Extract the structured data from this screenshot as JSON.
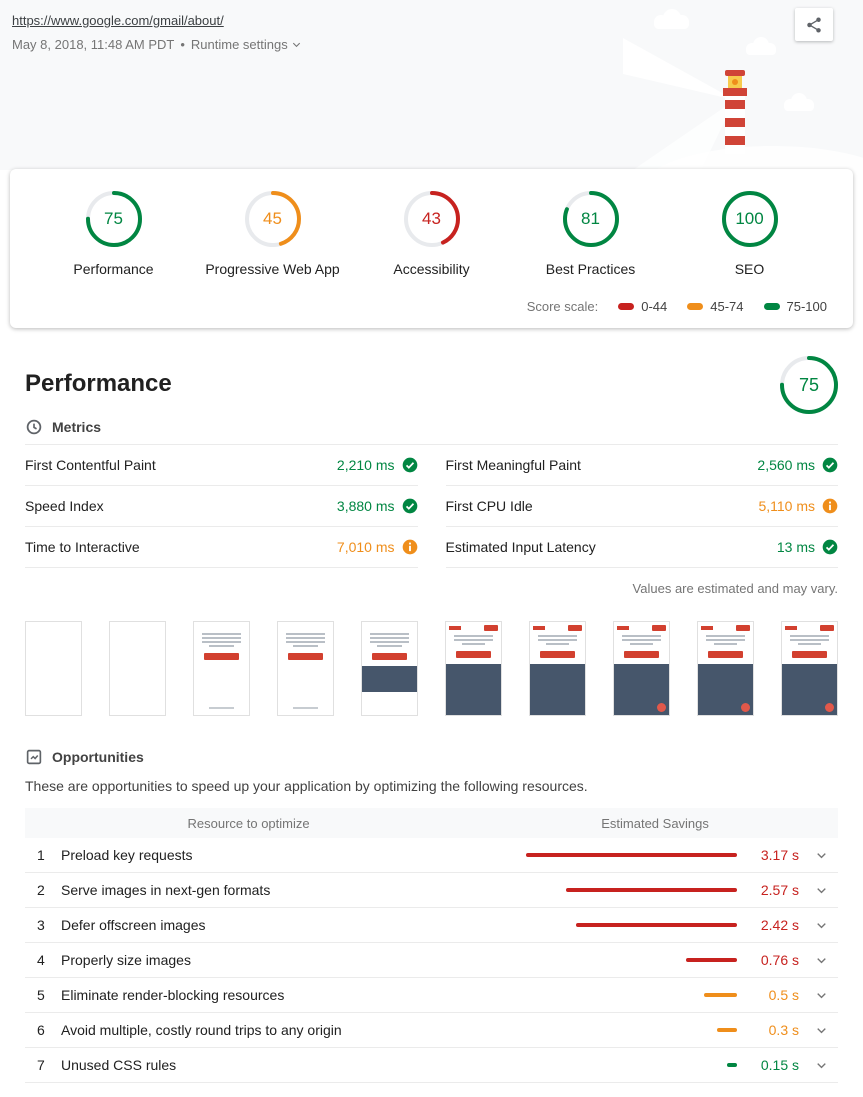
{
  "colors": {
    "pass": "#018642",
    "average": "#ef8e1b",
    "fail": "#c7221f"
  },
  "header": {
    "url": "https://www.google.com/gmail/about/",
    "meta": "May 8, 2018, 11:48 AM PDT",
    "separator": "•",
    "runtime_settings": "Runtime settings"
  },
  "scores": {
    "items": [
      {
        "label": "Performance",
        "score": 75,
        "status": "pass"
      },
      {
        "label": "Progressive Web App",
        "score": 45,
        "status": "average"
      },
      {
        "label": "Accessibility",
        "score": 43,
        "status": "fail"
      },
      {
        "label": "Best Practices",
        "score": 81,
        "status": "pass"
      },
      {
        "label": "SEO",
        "score": 100,
        "status": "pass"
      }
    ],
    "scale": {
      "label": "Score scale:",
      "ranges": [
        {
          "label": "0-44",
          "status": "fail"
        },
        {
          "label": "45-74",
          "status": "average"
        },
        {
          "label": "75-100",
          "status": "pass"
        }
      ]
    }
  },
  "performance": {
    "title": "Performance",
    "gauge": {
      "score": 75,
      "status": "pass"
    },
    "metrics": {
      "heading": "Metrics",
      "items": [
        {
          "label": "First Contentful Paint",
          "value": "2,210 ms",
          "status": "pass"
        },
        {
          "label": "First Meaningful Paint",
          "value": "2,560 ms",
          "status": "pass"
        },
        {
          "label": "Speed Index",
          "value": "3,880 ms",
          "status": "pass"
        },
        {
          "label": "First CPU Idle",
          "value": "5,110 ms",
          "status": "average"
        },
        {
          "label": "Time to Interactive",
          "value": "7,010 ms",
          "status": "average"
        },
        {
          "label": "Estimated Input Latency",
          "value": "13 ms",
          "status": "pass"
        }
      ],
      "disclaimer": "Values are estimated and may vary."
    },
    "filmstrip": {
      "frames": [
        "blank",
        "blank",
        "text",
        "text",
        "text-img",
        "page",
        "page",
        "page-fab",
        "page-fab",
        "page-fab"
      ]
    }
  },
  "opportunities": {
    "heading": "Opportunities",
    "description": "These are opportunities to speed up your application by optimizing the following resources.",
    "table": {
      "col1": "Resource to optimize",
      "col2": "Estimated Savings",
      "rows": [
        {
          "num": "1",
          "label": "Preload key requests",
          "seconds": 3.17,
          "savings": "3.17 s",
          "status": "fail"
        },
        {
          "num": "2",
          "label": "Serve images in next-gen formats",
          "seconds": 2.57,
          "savings": "2.57 s",
          "status": "fail"
        },
        {
          "num": "3",
          "label": "Defer offscreen images",
          "seconds": 2.42,
          "savings": "2.42 s",
          "status": "fail"
        },
        {
          "num": "4",
          "label": "Properly size images",
          "seconds": 0.76,
          "savings": "0.76 s",
          "status": "fail"
        },
        {
          "num": "5",
          "label": "Eliminate render-blocking resources",
          "seconds": 0.5,
          "savings": "0.5 s",
          "status": "average"
        },
        {
          "num": "6",
          "label": "Avoid multiple, costly round trips to any origin",
          "seconds": 0.3,
          "savings": "0.3 s",
          "status": "average"
        },
        {
          "num": "7",
          "label": "Unused CSS rules",
          "seconds": 0.15,
          "savings": "0.15 s",
          "status": "pass"
        }
      ]
    }
  }
}
